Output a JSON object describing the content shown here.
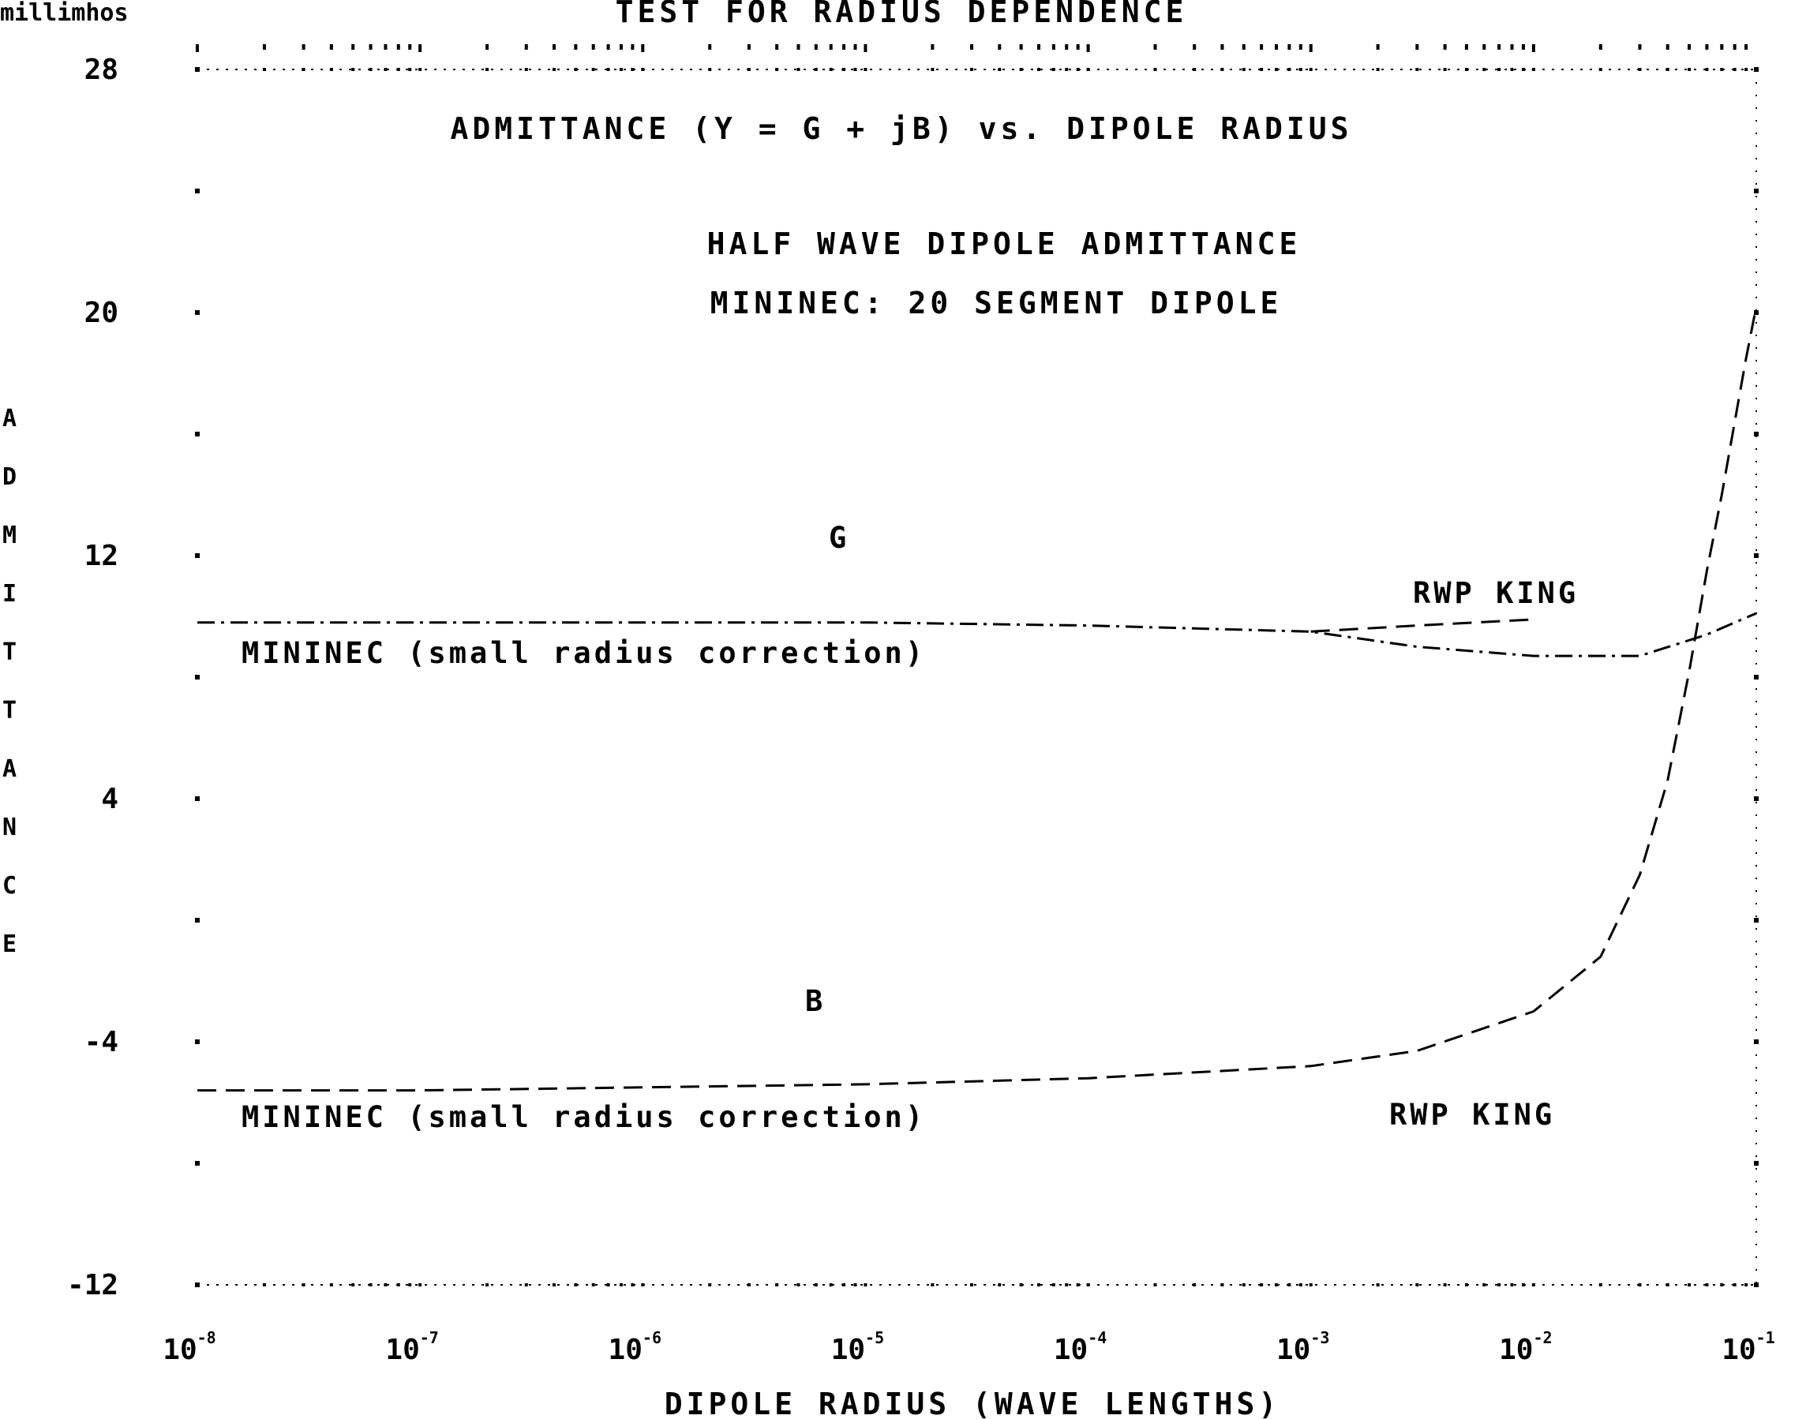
{
  "chart_data": {
    "type": "line",
    "title": "TEST FOR RADIUS DEPENDENCE",
    "annotations": {
      "top_note": "ADMITTANCE (Y = G + jB) vs. DIPOLE RADIUS",
      "subtitle_1": "HALF WAVE DIPOLE ADMITTANCE",
      "subtitle_2": "MININEC: 20 SEGMENT DIPOLE",
      "g_symbol": "G",
      "b_symbol": "B",
      "g_rwp": "RWP KING",
      "g_mininec": "MININEC (small radius correction)",
      "b_rwp": "RWP KING",
      "b_mininec": "MININEC (small radius correction)"
    },
    "y_unit": "millimhos",
    "ylabel": "ADMITTANCE",
    "xlabel": "DIPOLE RADIUS (WAVE LENGTHS)",
    "xscale": "log",
    "xlim": [
      1e-08,
      0.1
    ],
    "ylim": [
      -12,
      28
    ],
    "y_ticks": [
      "28",
      "20",
      "12",
      "4",
      "-4",
      "-12"
    ],
    "x_ticks": [
      {
        "base": "10",
        "exp": "-8"
      },
      {
        "base": "10",
        "exp": "-7"
      },
      {
        "base": "10",
        "exp": "-6"
      },
      {
        "base": "10",
        "exp": "-5"
      },
      {
        "base": "10",
        "exp": "-4"
      },
      {
        "base": "10",
        "exp": "-3"
      },
      {
        "base": "10",
        "exp": "-2"
      },
      {
        "base": "10",
        "exp": "-1"
      }
    ],
    "grid": false,
    "series": [
      {
        "name": "G",
        "style": "dash-dot",
        "x": [
          1e-08,
          1e-07,
          1e-06,
          1e-05,
          0.0001,
          0.001,
          0.003,
          0.01,
          0.03,
          0.06,
          0.1
        ],
        "y": [
          9.8,
          9.8,
          9.8,
          9.8,
          9.7,
          9.5,
          9.0,
          8.7,
          8.7,
          9.4,
          10.1
        ]
      },
      {
        "name": "G",
        "style": "dash",
        "x": [
          0.001,
          0.003,
          0.01
        ],
        "y": [
          9.5,
          9.7,
          9.9
        ]
      },
      {
        "name": "B",
        "style": "dash",
        "x": [
          1e-08,
          1e-07,
          1e-06,
          1e-05,
          0.0001,
          0.001,
          0.003,
          0.01,
          0.02,
          0.03,
          0.04,
          0.05,
          0.06,
          0.07,
          0.08,
          0.09,
          0.1
        ],
        "y": [
          -5.6,
          -5.6,
          -5.5,
          -5.4,
          -5.2,
          -4.8,
          -4.3,
          -3.0,
          -1.2,
          1.5,
          4.6,
          8.2,
          11.5,
          14.0,
          16.4,
          18.5,
          20.2
        ]
      }
    ]
  }
}
